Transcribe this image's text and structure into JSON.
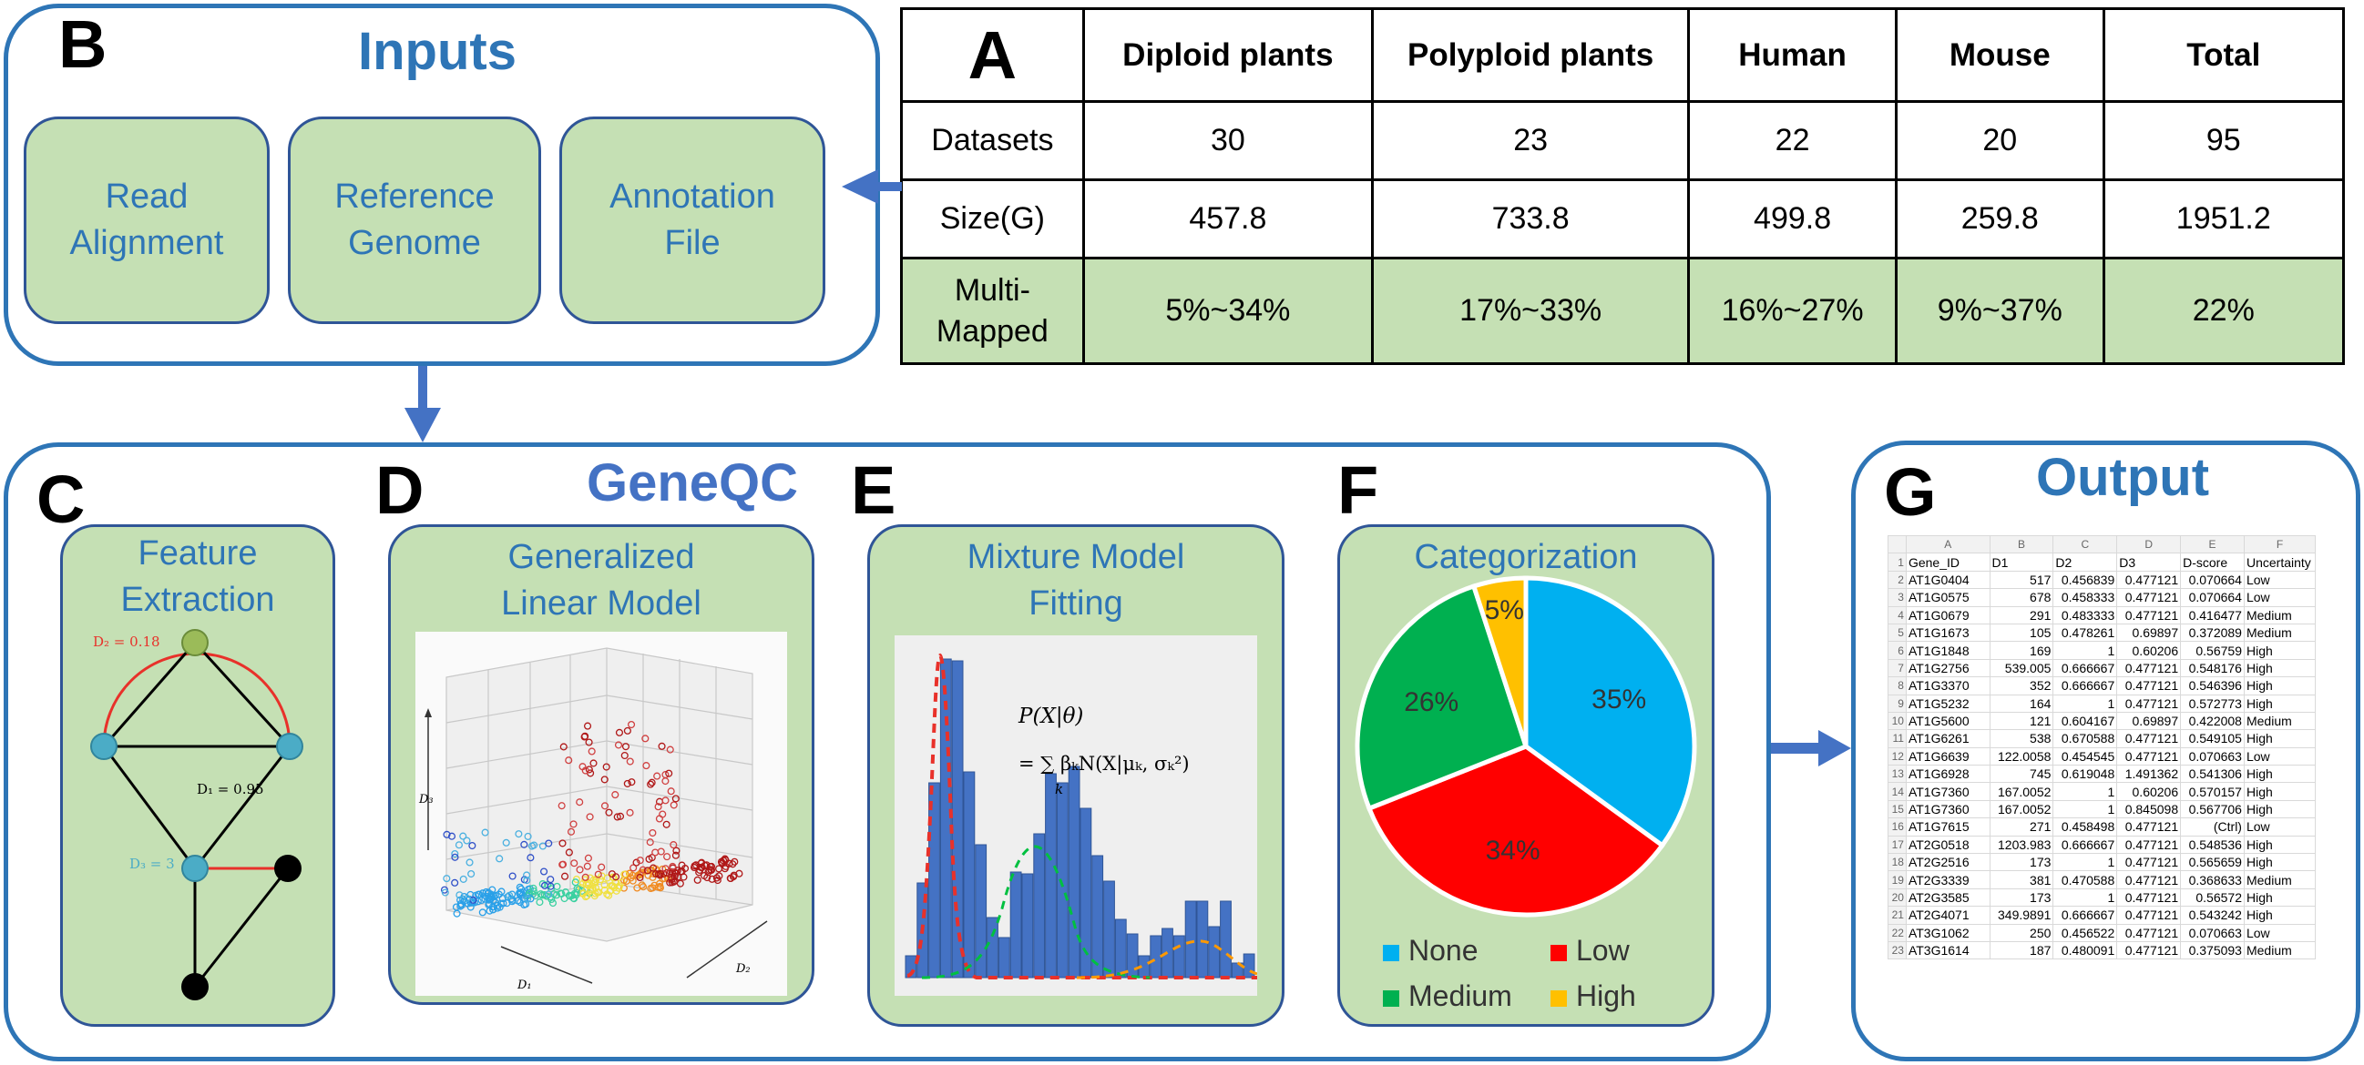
{
  "inputs": {
    "letter": "B",
    "title": "Inputs",
    "boxes": [
      {
        "line1": "Read",
        "line2": "Alignment"
      },
      {
        "line1": "Reference",
        "line2": "Genome"
      },
      {
        "line1": "Annotation",
        "line2": "File"
      }
    ]
  },
  "table": {
    "letter": "A",
    "headers": [
      "Diploid plants",
      "Polyploid plants",
      "Human",
      "Mouse",
      "Total"
    ],
    "rows": [
      {
        "label": "Datasets",
        "values": [
          "30",
          "23",
          "22",
          "20",
          "95"
        ]
      },
      {
        "label": "Size(G)",
        "values": [
          "457.8",
          "733.8",
          "499.8",
          "259.8",
          "1951.2"
        ]
      },
      {
        "label_line1": "Multi-",
        "label_line2": "Mapped",
        "values": [
          "5%~34%",
          "17%~33%",
          "16%~27%",
          "9%~37%",
          "22%"
        ]
      }
    ]
  },
  "geneqc": {
    "title": "GeneQC",
    "panels": [
      {
        "letter": "C",
        "line1": "Feature",
        "line2": "Extraction"
      },
      {
        "letter": "D",
        "line1": "Generalized",
        "line2": "Linear Model"
      },
      {
        "letter": "E",
        "line1": "Mixture Model",
        "line2": "Fitting"
      },
      {
        "letter": "F",
        "line1": "Categorization",
        "line2": ""
      }
    ]
  },
  "feature_graph": {
    "d2_label": "D₂ = 0.18",
    "d1_label": "D₁ = 0.95",
    "d3_label": "D₃ = 3"
  },
  "glm_axes": {
    "d3": "D₃",
    "d1": "D₁",
    "d2": "D₂"
  },
  "mixture": {
    "formula_line1": "P(X|θ)",
    "formula_line2": "= ∑ βₖN(X|μₖ, σₖ²)",
    "formula_sub": "k"
  },
  "chart_data": {
    "type": "pie",
    "categories": [
      "None",
      "Low",
      "Medium",
      "High"
    ],
    "values": [
      35,
      34,
      26,
      5
    ],
    "labels": [
      "35%",
      "34%",
      "26%",
      "5%"
    ],
    "colors": [
      "#00b0f0",
      "#ff0000",
      "#00b050",
      "#ffc000"
    ],
    "title": "Categorization",
    "legend": "bottom"
  },
  "output": {
    "letter": "G",
    "title": "Output",
    "columns": [
      "A",
      "B",
      "C",
      "D",
      "E",
      "F"
    ],
    "header": [
      "Gene_ID",
      "D1",
      "D2",
      "D3",
      "D-score",
      "Uncertainty"
    ],
    "rows": [
      [
        "AT1G0404",
        "517",
        "0.456839",
        "0.477121",
        "0.070664",
        "Low"
      ],
      [
        "AT1G0575",
        "678",
        "0.458333",
        "0.477121",
        "0.070664",
        "Low"
      ],
      [
        "AT1G0679",
        "291",
        "0.483333",
        "0.477121",
        "0.416477",
        "Medium"
      ],
      [
        "AT1G1673",
        "105",
        "0.478261",
        "0.69897",
        "0.372089",
        "Medium"
      ],
      [
        "AT1G1848",
        "169",
        "1",
        "0.60206",
        "0.56759",
        "High"
      ],
      [
        "AT1G2756",
        "539.005",
        "0.666667",
        "0.477121",
        "0.548176",
        "High"
      ],
      [
        "AT1G3370",
        "352",
        "0.666667",
        "0.477121",
        "0.546396",
        "High"
      ],
      [
        "AT1G5232",
        "164",
        "1",
        "0.477121",
        "0.572773",
        "High"
      ],
      [
        "AT1G5600",
        "121",
        "0.604167",
        "0.69897",
        "0.422008",
        "Medium"
      ],
      [
        "AT1G6261",
        "538",
        "0.670588",
        "0.477121",
        "0.549105",
        "High"
      ],
      [
        "AT1G6639",
        "122.0058",
        "0.454545",
        "0.477121",
        "0.070663",
        "Low"
      ],
      [
        "AT1G6928",
        "745",
        "0.619048",
        "1.491362",
        "0.541306",
        "High"
      ],
      [
        "AT1G7360",
        "167.0052",
        "1",
        "0.60206",
        "0.570157",
        "High"
      ],
      [
        "AT1G7360",
        "167.0052",
        "1",
        "0.845098",
        "0.567706",
        "High"
      ],
      [
        "AT1G7615",
        "271",
        "0.458498",
        "0.477121",
        "(Ctrl)",
        "Low"
      ],
      [
        "AT2G0518",
        "1203.983",
        "0.666667",
        "0.477121",
        "0.548536",
        "High"
      ],
      [
        "AT2G2516",
        "173",
        "1",
        "0.477121",
        "0.565659",
        "High"
      ],
      [
        "AT2G3339",
        "381",
        "0.470588",
        "0.477121",
        "0.368633",
        "Medium"
      ],
      [
        "AT2G3585",
        "173",
        "1",
        "0.477121",
        "0.56572",
        "High"
      ],
      [
        "AT2G4071",
        "349.9891",
        "0.666667",
        "0.477121",
        "0.543242",
        "High"
      ],
      [
        "AT3G1062",
        "250",
        "0.456522",
        "0.477121",
        "0.070663",
        "Low"
      ],
      [
        "AT3G1614",
        "187",
        "0.480091",
        "0.477121",
        "0.375093",
        "Medium"
      ]
    ]
  }
}
